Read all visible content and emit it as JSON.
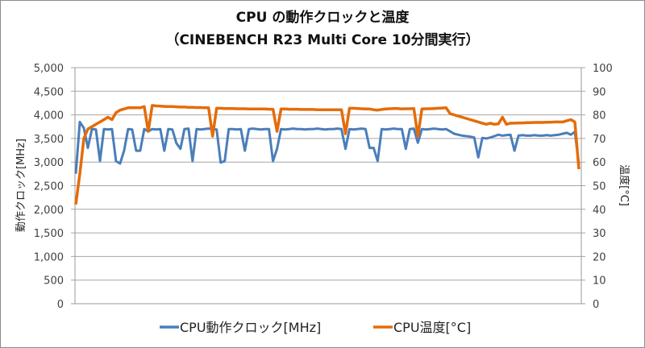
{
  "chart_data": {
    "type": "line",
    "title": "CPU の動作クロックと温度",
    "subtitle": "（CINEBENCH R23 Multi Core 10分間実行）",
    "ylabel": "動作クロック[MHz]",
    "y2label": "温度[°C]",
    "ylim": [
      0,
      5000
    ],
    "y2lim": [
      0,
      100
    ],
    "yticks": [
      "0",
      "500",
      "1,000",
      "1,500",
      "2,000",
      "2,500",
      "3,000",
      "3,500",
      "4,000",
      "4,500",
      "5,000"
    ],
    "y2ticks": [
      "0",
      "10",
      "20",
      "30",
      "40",
      "50",
      "60",
      "70",
      "80",
      "90",
      "100"
    ],
    "grid": true,
    "legend_position": "bottom",
    "series": [
      {
        "name": "CPU動作クロック[MHz]",
        "axis": "left",
        "color": "#4a7ebb",
        "values": [
          2750,
          3850,
          3720,
          3300,
          3700,
          3690,
          3020,
          3700,
          3690,
          3700,
          3020,
          2970,
          3240,
          3700,
          3690,
          3240,
          3240,
          3700,
          3650,
          3700,
          3690,
          3700,
          3240,
          3700,
          3690,
          3400,
          3280,
          3700,
          3710,
          3020,
          3700,
          3690,
          3700,
          3710,
          3700,
          3690,
          2990,
          3020,
          3700,
          3700,
          3690,
          3700,
          3240,
          3700,
          3710,
          3700,
          3690,
          3700,
          3700,
          3020,
          3280,
          3700,
          3690,
          3700,
          3710,
          3700,
          3700,
          3690,
          3700,
          3700,
          3710,
          3700,
          3690,
          3700,
          3700,
          3710,
          3700,
          3280,
          3700,
          3690,
          3700,
          3710,
          3700,
          3300,
          3300,
          3020,
          3700,
          3690,
          3700,
          3710,
          3700,
          3700,
          3280,
          3700,
          3710,
          3410,
          3700,
          3690,
          3700,
          3710,
          3700,
          3690,
          3700,
          3650,
          3600,
          3580,
          3560,
          3550,
          3540,
          3520,
          3100,
          3510,
          3500,
          3520,
          3550,
          3580,
          3560,
          3570,
          3580,
          3240,
          3560,
          3570,
          3560,
          3560,
          3570,
          3560,
          3560,
          3570,
          3560,
          3570,
          3580,
          3600,
          3620,
          3580,
          3640,
          2950
        ]
      },
      {
        "name": "CPU温度[°C]",
        "axis": "right",
        "color": "#e46c0a",
        "values": [
          42,
          55,
          70,
          74,
          75,
          76,
          77,
          78,
          79,
          78,
          81,
          82,
          82.5,
          83,
          83,
          83,
          83,
          83.5,
          73,
          84,
          83.8,
          83.7,
          83.6,
          83.5,
          83.5,
          83.4,
          83.3,
          83.3,
          83.2,
          83.2,
          83.1,
          83.1,
          83,
          83,
          71,
          82.8,
          82.8,
          82.7,
          82.7,
          82.7,
          82.6,
          82.6,
          82.6,
          82.5,
          82.5,
          82.5,
          82.5,
          82.5,
          82.4,
          82.4,
          73,
          82.5,
          82.5,
          82.4,
          82.4,
          82.4,
          82.3,
          82.3,
          82.3,
          82.3,
          82.2,
          82.2,
          82.2,
          82.2,
          82.2,
          82.2,
          82.2,
          72,
          82.8,
          82.8,
          82.7,
          82.6,
          82.5,
          82.5,
          82.2,
          82,
          82.3,
          82.5,
          82.6,
          82.7,
          82.7,
          82.5,
          82.6,
          82.6,
          82.7,
          71,
          82.5,
          82.6,
          82.6,
          82.7,
          82.8,
          82.9,
          83,
          80.5,
          80,
          79.5,
          79,
          78.5,
          78,
          77.5,
          77,
          76.5,
          76,
          76.5,
          76,
          76.2,
          79,
          76,
          76.5,
          76.5,
          76.6,
          76.6,
          76.7,
          76.7,
          76.8,
          76.8,
          76.8,
          76.9,
          76.9,
          77,
          77,
          77,
          77.5,
          78,
          77,
          57
        ]
      }
    ]
  }
}
